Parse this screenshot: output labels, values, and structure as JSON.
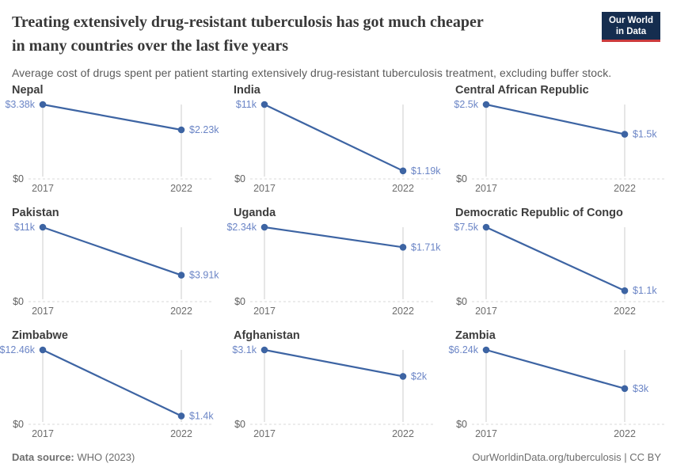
{
  "header": {
    "title_lines": [
      "Treating extensively drug-resistant tuberculosis has got much cheaper",
      "in many countries over the last five years"
    ],
    "subtitle": "Average cost of drugs spent per patient starting extensively drug-resistant tuberculosis treatment, excluding buffer stock.",
    "logo": {
      "line1": "Our World",
      "line2": "in Data",
      "bg_color": "#152d4f",
      "accent_color": "#cc3b3c"
    }
  },
  "chart_data": {
    "type": "line",
    "x": [
      2017,
      2022
    ],
    "x_tick_labels": [
      "2017",
      "2022"
    ],
    "y_axis_zero_label": "$0",
    "ylim_note": "each facet scales from $0 to its 2017 value",
    "facets": [
      {
        "country": "Nepal",
        "values_k": [
          3.38,
          2.23
        ],
        "labels": [
          "$3.38k",
          "$2.23k"
        ]
      },
      {
        "country": "India",
        "values_k": [
          11,
          1.19
        ],
        "labels": [
          "$11k",
          "$1.19k"
        ]
      },
      {
        "country": "Central African Republic",
        "values_k": [
          2.5,
          1.5
        ],
        "labels": [
          "$2.5k",
          "$1.5k"
        ]
      },
      {
        "country": "Pakistan",
        "values_k": [
          11,
          3.91
        ],
        "labels": [
          "$11k",
          "$3.91k"
        ]
      },
      {
        "country": "Uganda",
        "values_k": [
          2.34,
          1.71
        ],
        "labels": [
          "$2.34k",
          "$1.71k"
        ]
      },
      {
        "country": "Democratic Republic of Congo",
        "values_k": [
          7.5,
          1.1
        ],
        "labels": [
          "$7.5k",
          "$1.1k"
        ]
      },
      {
        "country": "Zimbabwe",
        "values_k": [
          12.46,
          1.4
        ],
        "labels": [
          "$12.46k",
          "$1.4k"
        ]
      },
      {
        "country": "Afghanistan",
        "values_k": [
          3.1,
          2
        ],
        "labels": [
          "$3.1k",
          "$2k"
        ]
      },
      {
        "country": "Zambia",
        "values_k": [
          6.24,
          3
        ],
        "labels": [
          "$6.24k",
          "$3k"
        ]
      }
    ],
    "colors": {
      "line": "#3d64a3",
      "point": "#3d64a3",
      "value_label": "#6b85c6",
      "axis_line": "#cccccc",
      "baseline_dash": "#d9d9d9",
      "tick_label": "#6d6d6d",
      "zero_label": "#5f5f5f"
    }
  },
  "footer": {
    "source_label": "Data source:",
    "source_value": " WHO (2023)",
    "credit": "OurWorldinData.org/tuberculosis | CC BY"
  }
}
